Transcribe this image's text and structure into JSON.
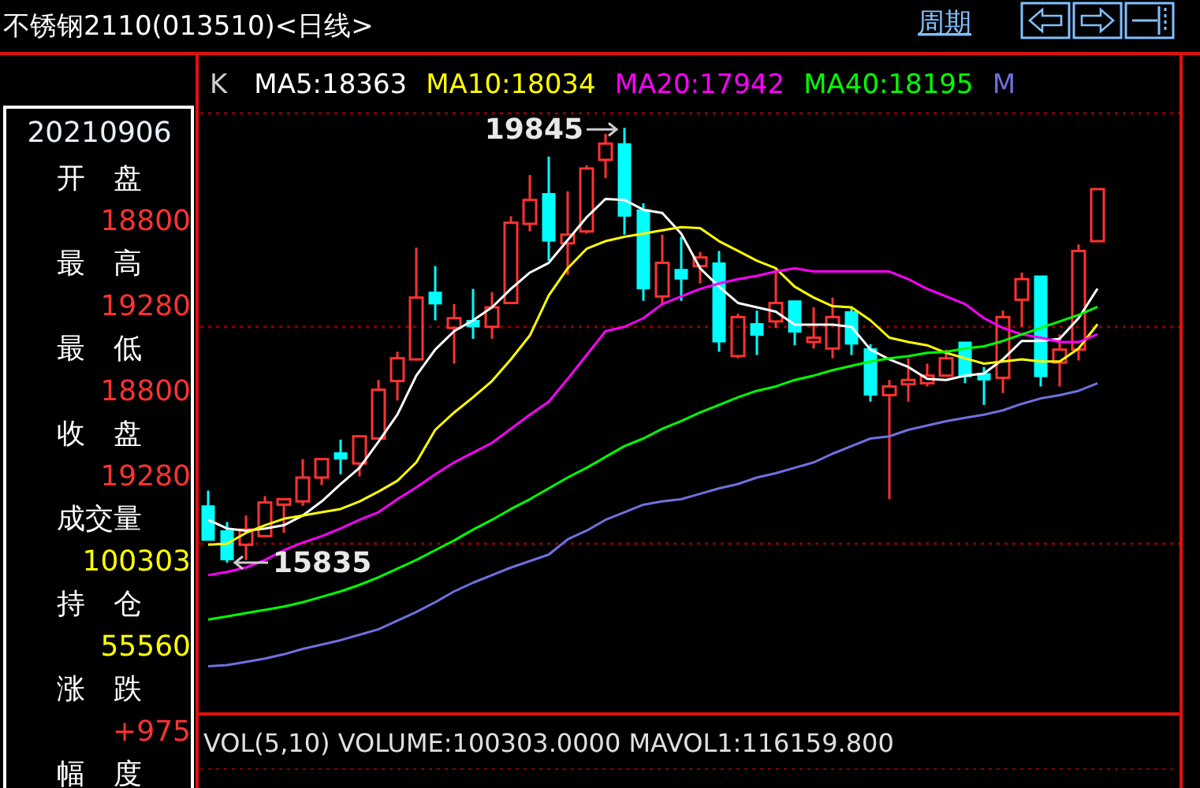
{
  "chart_data": [
    {
      "type": "candlestick",
      "title": "不锈钢2110(013510)<日线>",
      "legend_title": "K",
      "legend": "top",
      "tick_labels": false,
      "grid": "y",
      "categories": [
        null,
        null,
        null,
        null,
        null,
        null,
        null,
        null,
        null,
        null,
        null,
        null,
        null,
        null,
        null,
        null,
        null,
        null,
        null,
        null,
        null,
        null,
        null,
        null,
        null,
        null,
        null,
        null,
        null,
        null,
        null,
        null,
        null,
        null,
        null,
        null,
        null,
        null,
        null,
        null,
        null,
        null,
        null,
        null,
        null,
        null,
        null,
        null
      ],
      "ylim": [
        14440,
        20530
      ],
      "yticks": [
        {
          "value": 16010,
          "label": null
        },
        {
          "value": 18010,
          "label": null
        },
        {
          "value": 19980,
          "label": null
        }
      ],
      "ohlc": [
        [
          16360,
          16500,
          16040,
          16040
        ],
        [
          16130,
          16210,
          15835,
          15860
        ],
        [
          16000,
          16270,
          15860,
          16140
        ],
        [
          16080,
          16450,
          16070,
          16390
        ],
        [
          16370,
          16420,
          16110,
          16420
        ],
        [
          16400,
          16790,
          16360,
          16620
        ],
        [
          16620,
          16790,
          16550,
          16790
        ],
        [
          16850,
          16970,
          16650,
          16790
        ],
        [
          16750,
          17010,
          16630,
          17000
        ],
        [
          16980,
          17520,
          16970,
          17430
        ],
        [
          17510,
          17780,
          17330,
          17720
        ],
        [
          17710,
          18740,
          17700,
          18280
        ],
        [
          18330,
          18570,
          18070,
          18220
        ],
        [
          18000,
          18220,
          17670,
          18090
        ],
        [
          18070,
          18360,
          17900,
          18010
        ],
        [
          18010,
          18330,
          17900,
          18190
        ],
        [
          18230,
          19030,
          18230,
          18970
        ],
        [
          18960,
          19410,
          18890,
          19180
        ],
        [
          19240,
          19580,
          18620,
          18800
        ],
        [
          18780,
          19260,
          18490,
          18860
        ],
        [
          18890,
          19500,
          18870,
          19470
        ],
        [
          19550,
          19790,
          19380,
          19700
        ],
        [
          19700,
          19845,
          18860,
          19030
        ],
        [
          19090,
          19150,
          18250,
          18360
        ],
        [
          18290,
          18860,
          18220,
          18600
        ],
        [
          18540,
          18840,
          18250,
          18450
        ],
        [
          18570,
          18700,
          18410,
          18650
        ],
        [
          18600,
          18710,
          17780,
          17870
        ],
        [
          17740,
          18130,
          17720,
          18100
        ],
        [
          18040,
          18160,
          17750,
          17930
        ],
        [
          18060,
          18540,
          18000,
          18230
        ],
        [
          18250,
          18250,
          17840,
          17960
        ],
        [
          17870,
          18190,
          17810,
          17910
        ],
        [
          17810,
          18280,
          17720,
          18100
        ],
        [
          18150,
          18190,
          17750,
          17850
        ],
        [
          17810,
          17850,
          17320,
          17380
        ],
        [
          17380,
          17520,
          16420,
          17460
        ],
        [
          17480,
          17720,
          17320,
          17520
        ],
        [
          17490,
          17670,
          17460,
          17560
        ],
        [
          17560,
          17800,
          17560,
          17720
        ],
        [
          17870,
          17870,
          17490,
          17550
        ],
        [
          17580,
          17640,
          17290,
          17520
        ],
        [
          17540,
          18160,
          17400,
          18100
        ],
        [
          18260,
          18510,
          18010,
          18450
        ],
        [
          18480,
          18480,
          17460,
          17550
        ],
        [
          17680,
          17940,
          17460,
          17800
        ],
        [
          17800,
          18770,
          17700,
          18710
        ],
        [
          18800,
          19280,
          18800,
          19280
        ]
      ],
      "colors": [
        "#00ffff",
        "#00ffff",
        "#ff3232",
        "#ff3232",
        "#ff3232",
        "#ff3232",
        "#ff3232",
        "#00ffff",
        "#ff3232",
        "#ff3232",
        "#ff3232",
        "#ff3232",
        "#00ffff",
        "#ff3232",
        "#00ffff",
        "#ff3232",
        "#ff3232",
        "#ff3232",
        "#00ffff",
        "#ff3232",
        "#ff3232",
        "#ff3232",
        "#00ffff",
        "#00ffff",
        "#ff3232",
        "#00ffff",
        "#ff3232",
        "#00ffff",
        "#ff3232",
        "#00ffff",
        "#ff3232",
        "#00ffff",
        "#ff3232",
        "#ff3232",
        "#00ffff",
        "#00ffff",
        "#ff3232",
        "#ff3232",
        "#ff3232",
        "#ff3232",
        "#00ffff",
        "#00ffff",
        "#ff3232",
        "#ff3232",
        "#00ffff",
        "#ff3232",
        "#ff3232",
        "#ff3232"
      ],
      "series": [
        {
          "type": "line",
          "name": "MA5:18363",
          "color": "#ffffff",
          "values": [
            16230,
            16150,
            16130,
            16150,
            16180,
            16270,
            16400,
            16560,
            16710,
            16950,
            17200,
            17560,
            17800,
            17970,
            18070,
            18190,
            18360,
            18510,
            18600,
            18810,
            19020,
            19190,
            19180,
            19090,
            19060,
            18870,
            18550,
            18380,
            18230,
            18190,
            18150,
            18030,
            18030,
            18030,
            18010,
            17800,
            17710,
            17640,
            17530,
            17520,
            17560,
            17580,
            17710,
            17880,
            17880,
            17900,
            18090,
            18363
          ]
        },
        {
          "type": "line",
          "name": "MA10:18034",
          "color": "#ffff00",
          "values": [
            16000,
            16010,
            16110,
            16180,
            16240,
            16270,
            16300,
            16330,
            16400,
            16490,
            16590,
            16760,
            17060,
            17220,
            17360,
            17510,
            17710,
            17930,
            18300,
            18550,
            18730,
            18800,
            18840,
            18870,
            18900,
            18930,
            18920,
            18800,
            18710,
            18620,
            18550,
            18380,
            18280,
            18200,
            18190,
            18070,
            17910,
            17870,
            17840,
            17770,
            17720,
            17670,
            17690,
            17710,
            17690,
            17690,
            17810,
            18034
          ]
        },
        {
          "type": "line",
          "name": "MA20:17942",
          "color": "#ff00ff",
          "values": [
            15720,
            15750,
            15790,
            15860,
            15950,
            16020,
            16080,
            16150,
            16230,
            16300,
            16420,
            16530,
            16650,
            16760,
            16850,
            16940,
            17070,
            17200,
            17320,
            17530,
            17750,
            17970,
            18010,
            18090,
            18220,
            18290,
            18360,
            18410,
            18450,
            18480,
            18520,
            18550,
            18520,
            18520,
            18520,
            18520,
            18520,
            18450,
            18360,
            18290,
            18220,
            18090,
            18000,
            17940,
            17910,
            17870,
            17870,
            17942
          ]
        },
        {
          "type": "line",
          "name": "MA40:18195",
          "color": "#00ff00",
          "values": [
            15310,
            15340,
            15370,
            15400,
            15430,
            15470,
            15520,
            15570,
            15630,
            15700,
            15780,
            15860,
            15950,
            16040,
            16140,
            16230,
            16330,
            16420,
            16520,
            16620,
            16710,
            16810,
            16910,
            16980,
            17070,
            17140,
            17220,
            17290,
            17360,
            17420,
            17460,
            17520,
            17560,
            17610,
            17650,
            17690,
            17720,
            17740,
            17770,
            17780,
            17810,
            17830,
            17880,
            17940,
            18000,
            18060,
            18120,
            18195
          ]
        },
        {
          "type": "line",
          "name": "M",
          "color": "#7070e0",
          "values": [
            14880,
            14890,
            14920,
            14950,
            14990,
            15040,
            15080,
            15120,
            15170,
            15220,
            15300,
            15380,
            15470,
            15570,
            15650,
            15720,
            15790,
            15850,
            15910,
            16050,
            16130,
            16230,
            16300,
            16370,
            16400,
            16420,
            16470,
            16520,
            16560,
            16620,
            16660,
            16710,
            16760,
            16840,
            16910,
            16980,
            17000,
            17060,
            17100,
            17140,
            17170,
            17200,
            17240,
            17300,
            17350,
            17380,
            17420,
            17490
          ]
        }
      ],
      "annotations": [
        "19845",
        "15835",
        "周期",
        "VOL(5,10) VOLUME:100303.0000 MAVOL1:116159.800"
      ]
    },
    {
      "type": "other",
      "title": "20210906",
      "annotations": [
        "开　盘",
        "18800",
        "最　高",
        "19280",
        "最　低",
        "18800",
        "收　盘",
        "19280",
        "成交量",
        "100303",
        "持　仓",
        "55560",
        "涨　跌",
        "+975",
        "幅　度"
      ],
      "colors": [
        "#ffffff",
        "#ff3232",
        "#ffffff",
        "#ff3232",
        "#ffffff",
        "#ff3232",
        "#ffffff",
        "#ff3232",
        "#ffffff",
        "#ffff00",
        "#ffffff",
        "#ffff00",
        "#ffffff",
        "#ff3232",
        "#ffffff"
      ]
    }
  ]
}
